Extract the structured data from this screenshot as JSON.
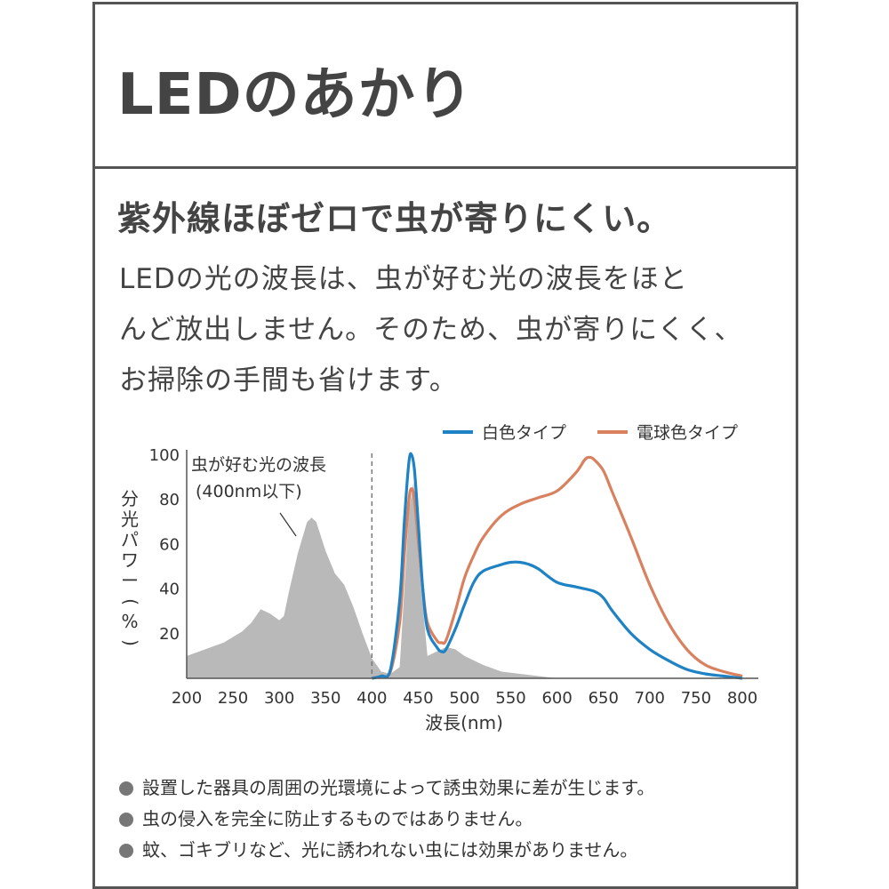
{
  "header": {
    "title": "LEDのあかり"
  },
  "subtitle": "紫外線ほぼゼロで虫が寄りにくい。",
  "body": [
    "LEDの光の波長は、虫が好む光の波長をほと",
    "んど放出しません。そのため、虫が寄りにくく、",
    "お掃除の手間も省けます。"
  ],
  "notes": [
    "設置した器具の周囲の光環境によって誘虫効果に差が生じます。",
    "虫の侵入を完全に防止するものではありません。",
    "蚊、ゴキブリなど、光に誘われない虫には効果がありません。"
  ],
  "colors": {
    "white_led": "#1f82c4",
    "bulb_led": "#d9805f",
    "insect_area": "#b9b9b9",
    "frame": "#555555"
  },
  "chart_data": {
    "type": "line",
    "xlabel": "波長(nm)",
    "ylabel": "分光パワー(%)",
    "xlim": [
      200,
      800
    ],
    "ylim": [
      0,
      100
    ],
    "xticks": [
      200,
      250,
      300,
      350,
      400,
      450,
      500,
      550,
      600,
      650,
      700,
      750,
      800
    ],
    "yticks": [
      20,
      40,
      60,
      80,
      100
    ],
    "legend_position": "top-right",
    "annotation": {
      "line1": "虫が好む光の波長",
      "line2": "(400nm以下)"
    },
    "cutoff_x": 400,
    "insect_area": {
      "x": [
        200,
        220,
        240,
        260,
        270,
        280,
        290,
        300,
        305,
        310,
        320,
        330,
        335,
        340,
        350,
        360,
        370,
        380,
        390,
        400,
        410,
        420,
        430,
        440,
        445,
        450,
        460,
        470,
        480,
        490,
        500,
        520,
        540,
        560,
        580,
        600
      ],
      "y": [
        10,
        13,
        16,
        21,
        25,
        31,
        29,
        26,
        28,
        38,
        56,
        70,
        72,
        70,
        57,
        47,
        42,
        32,
        20,
        9,
        3,
        2,
        5,
        75,
        88,
        55,
        10,
        12,
        14,
        13,
        10,
        6,
        3,
        2,
        1,
        0
      ]
    },
    "series": [
      {
        "name": "白色タイプ",
        "color": "#1f82c4",
        "x": [
          400,
          410,
          420,
          430,
          435,
          440,
          443,
          446,
          450,
          455,
          460,
          470,
          475,
          480,
          490,
          500,
          510,
          520,
          540,
          550,
          560,
          570,
          580,
          600,
          620,
          640,
          650,
          660,
          680,
          700,
          720,
          740,
          760,
          780,
          800
        ],
        "y": [
          0,
          1,
          4,
          35,
          70,
          97,
          100,
          93,
          70,
          40,
          22,
          14,
          12,
          13,
          22,
          33,
          43,
          48,
          51,
          52,
          52,
          51,
          49,
          43,
          41,
          39,
          36,
          30,
          20,
          13,
          8,
          4,
          2,
          1,
          0
        ]
      },
      {
        "name": "電球色タイプ",
        "color": "#d9805f",
        "x": [
          400,
          410,
          420,
          430,
          435,
          440,
          443,
          446,
          450,
          455,
          460,
          470,
          475,
          480,
          490,
          500,
          510,
          520,
          540,
          560,
          580,
          600,
          620,
          630,
          635,
          640,
          650,
          660,
          680,
          700,
          720,
          740,
          760,
          780,
          800
        ],
        "y": [
          0,
          1,
          3,
          25,
          55,
          80,
          85,
          80,
          62,
          40,
          25,
          17,
          16,
          17,
          30,
          45,
          55,
          63,
          73,
          78,
          81,
          84,
          92,
          98,
          99,
          98,
          93,
          83,
          63,
          42,
          25,
          13,
          6,
          3,
          1
        ]
      }
    ]
  }
}
